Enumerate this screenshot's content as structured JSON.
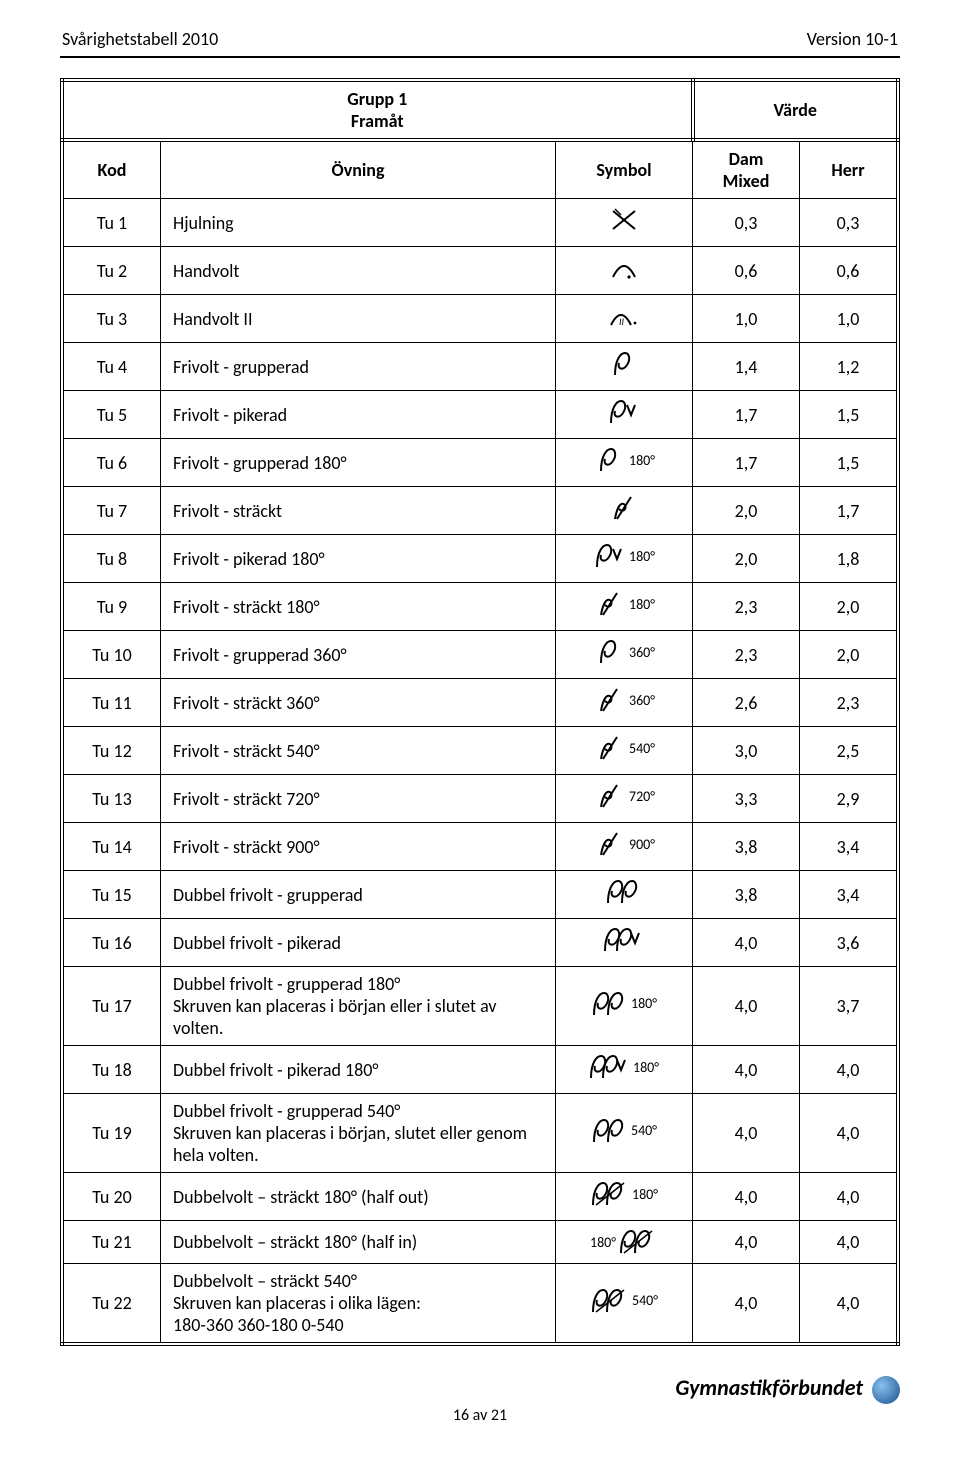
{
  "header": {
    "left": "Svårighetstabell 2010",
    "right": "Version 10-1"
  },
  "group_title": "Grupp 1\nFramåt",
  "value_title": "Värde",
  "columns": {
    "kod": "Kod",
    "ovning": "Övning",
    "symbol": "Symbol",
    "dam": "Dam\nMixed",
    "herr": "Herr"
  },
  "rows": [
    {
      "kod": "Tu 1",
      "ovning": "Hjulning",
      "sym": "cartwheel",
      "dam": "0,3",
      "herr": "0,3"
    },
    {
      "kod": "Tu 2",
      "ovning": "Handvolt",
      "sym": "arcdot",
      "dam": "0,6",
      "herr": "0,6"
    },
    {
      "kod": "Tu 3",
      "ovning": "Handvolt II",
      "sym": "arcii",
      "dam": "1,0",
      "herr": "1,0"
    },
    {
      "kod": "Tu 4",
      "ovning": "Frivolt - grupperad",
      "sym": "loop",
      "dam": "1,4",
      "herr": "1,2"
    },
    {
      "kod": "Tu 5",
      "ovning": "Frivolt - pikerad",
      "sym": "loopV",
      "dam": "1,7",
      "herr": "1,5"
    },
    {
      "kod": "Tu 6",
      "ovning": "Frivolt - grupperad 180°",
      "sym": "loop",
      "deg": "180°",
      "dam": "1,7",
      "herr": "1,5"
    },
    {
      "kod": "Tu 7",
      "ovning": "Frivolt - sträckt",
      "sym": "slashloop",
      "dam": "2,0",
      "herr": "1,7"
    },
    {
      "kod": "Tu 8",
      "ovning": "Frivolt - pikerad 180°",
      "sym": "loopV",
      "deg": "180°",
      "dam": "2,0",
      "herr": "1,8"
    },
    {
      "kod": "Tu 9",
      "ovning": "Frivolt - sträckt 180°",
      "sym": "slashloop",
      "deg": "180°",
      "dam": "2,3",
      "herr": "2,0"
    },
    {
      "kod": "Tu 10",
      "ovning": "Frivolt - grupperad 360°",
      "sym": "loop",
      "deg": "360°",
      "dam": "2,3",
      "herr": "2,0"
    },
    {
      "kod": "Tu 11",
      "ovning": "Frivolt - sträckt 360°",
      "sym": "slashloop",
      "deg": "360°",
      "dam": "2,6",
      "herr": "2,3"
    },
    {
      "kod": "Tu 12",
      "ovning": "Frivolt - sträckt 540°",
      "sym": "slashloop",
      "deg": "540°",
      "dam": "3,0",
      "herr": "2,5"
    },
    {
      "kod": "Tu 13",
      "ovning": "Frivolt - sträckt 720°",
      "sym": "slashloop",
      "deg": "720°",
      "dam": "3,3",
      "herr": "2,9"
    },
    {
      "kod": "Tu 14",
      "ovning": "Frivolt - sträckt 900°",
      "sym": "slashloop",
      "deg": "900°",
      "dam": "3,8",
      "herr": "3,4"
    },
    {
      "kod": "Tu 15",
      "ovning": "Dubbel frivolt  - grupperad",
      "sym": "dloop",
      "dam": "3,8",
      "herr": "3,4"
    },
    {
      "kod": "Tu 16",
      "ovning": "Dubbel frivolt - pikerad",
      "sym": "dloopV",
      "dam": "4,0",
      "herr": "3,6"
    },
    {
      "kod": "Tu 17",
      "ovning": "Dubbel frivolt - grupperad 180°\nSkruven kan placeras i början eller i slutet av volten.",
      "sym": "dloop",
      "deg": "180°",
      "dam": "4,0",
      "herr": "3,7"
    },
    {
      "kod": "Tu 18",
      "ovning": "Dubbel frivolt - pikerad 180°",
      "sym": "dloopV",
      "deg": "180°",
      "dam": "4,0",
      "herr": "4,0"
    },
    {
      "kod": "Tu 19",
      "ovning": "Dubbel frivolt - grupperad 540°\nSkruven kan placeras i början, slutet eller genom hela volten.",
      "sym": "dloop",
      "deg": "540°",
      "dam": "4,0",
      "herr": "4,0"
    },
    {
      "kod": "Tu 20",
      "ovning": "Dubbelvolt – sträckt 180° (half out)",
      "sym": "dloopslash",
      "deg": "180°",
      "dam": "4,0",
      "herr": "4,0"
    },
    {
      "kod": "Tu 21",
      "ovning": "Dubbelvolt – sträckt 180° (half in)",
      "sym": "dloopslash",
      "deg_pre": "180°",
      "dam": "4,0",
      "herr": "4,0"
    },
    {
      "kod": "Tu 22",
      "ovning": "Dubbelvolt – sträckt 540°\nSkruven kan placeras i olika lägen:\n180-360 360-180 0-540",
      "sym": "dloopslash",
      "deg": "540°",
      "dam": "4,0",
      "herr": "4,0"
    }
  ],
  "footer_brand": "Gymnastikförbundet",
  "page_num": "16 av 21",
  "style": {
    "col_widths": {
      "kod": "80px",
      "symbol": "120px",
      "dam": "90px",
      "herr": "80px"
    },
    "body_font_size": 18,
    "stroke_color": "#000000",
    "stroke_width": 2
  }
}
